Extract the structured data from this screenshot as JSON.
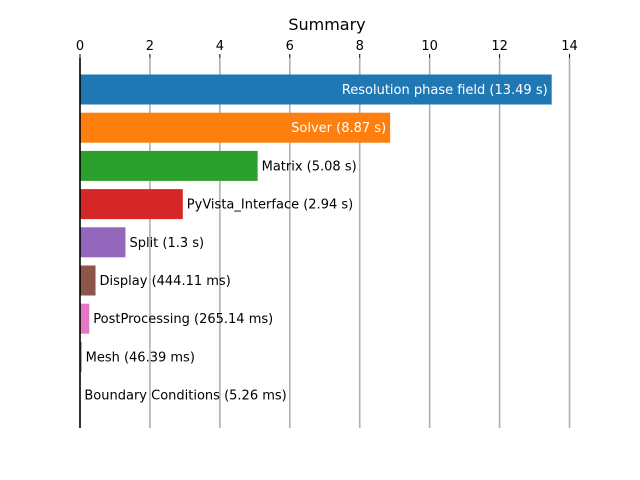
{
  "chart_data": {
    "type": "bar",
    "orientation": "horizontal",
    "title": "Summary",
    "xlabel": "",
    "ylabel": "",
    "xlim": [
      0,
      14.7
    ],
    "x_ticks": [
      0,
      2,
      4,
      6,
      8,
      10,
      12,
      14
    ],
    "x_axis_position": "top",
    "grid": "vertical",
    "bars": [
      {
        "category": "Resolution phase field",
        "label": "Resolution phase field (13.49 s)",
        "value": 13.49,
        "unit": "s",
        "color": "#1f77b4",
        "label_position": "inside",
        "label_color": "#ffffff"
      },
      {
        "category": "Solver",
        "label": "Solver (8.87 s)",
        "value": 8.87,
        "unit": "s",
        "color": "#ff7f0e",
        "label_position": "inside",
        "label_color": "#ffffff"
      },
      {
        "category": "Matrix",
        "label": "Matrix (5.08 s)",
        "value": 5.08,
        "unit": "s",
        "color": "#2ca02c",
        "label_position": "outside",
        "label_color": "#000000"
      },
      {
        "category": "PyVista_Interface",
        "label": "PyVista_Interface (2.94 s)",
        "value": 2.94,
        "unit": "s",
        "color": "#d62728",
        "label_position": "outside",
        "label_color": "#000000"
      },
      {
        "category": "Split",
        "label": "Split (1.3 s)",
        "value": 1.3,
        "unit": "s",
        "color": "#9467bd",
        "label_position": "outside",
        "label_color": "#000000"
      },
      {
        "category": "Display",
        "label": "Display (444.11 ms)",
        "value": 0.44411,
        "unit": "s",
        "color": "#8c564b",
        "label_position": "outside",
        "label_color": "#000000"
      },
      {
        "category": "PostProcessing",
        "label": "PostProcessing (265.14 ms)",
        "value": 0.26514,
        "unit": "s",
        "color": "#e377c2",
        "label_position": "outside",
        "label_color": "#000000"
      },
      {
        "category": "Mesh",
        "label": "Mesh (46.39 ms)",
        "value": 0.04639,
        "unit": "s",
        "color": "#7f7f7f",
        "label_position": "outside",
        "label_color": "#000000"
      },
      {
        "category": "Boundary Conditions",
        "label": "Boundary Conditions (5.26 ms)",
        "value": 0.00526,
        "unit": "s",
        "color": "#bcbd22",
        "label_position": "outside",
        "label_color": "#000000"
      }
    ]
  }
}
